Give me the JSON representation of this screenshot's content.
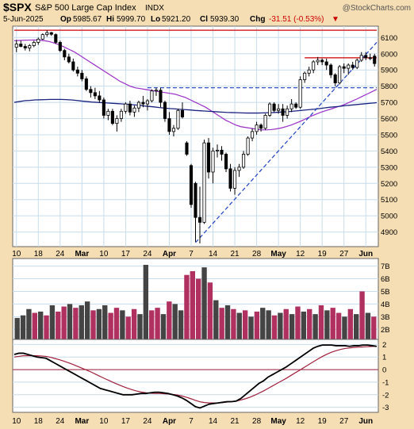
{
  "header": {
    "symbol": "$SPX",
    "name": "S&P 500 Large Cap Index",
    "exchange": "INDX",
    "copyright": "@StockCharts.com",
    "date": "5-Jun-2025",
    "open_label": "Op",
    "open": "5985.67",
    "high_label": "Hi",
    "high": "5999.70",
    "low_label": "Lo",
    "low": "5921.20",
    "close_label": "Cl",
    "close": "5939.30",
    "change_label": "Chg",
    "change": "-31.51 (-0.53%)",
    "change_arrow": "▼"
  },
  "colors": {
    "background": "#f5deb3",
    "panel": "#ffffff",
    "grid": "#c8dcec",
    "candle": "#000000",
    "up_volume": "#b03060",
    "down_volume": "#444444",
    "ma_short": "#9b30c8",
    "ma_long": "#1a237e",
    "trendline": "#1f3fbf",
    "resistance": "#cc0000",
    "indicator_line": "#000000",
    "indicator_signal": "#a0203c",
    "zero_line": "#a0203c"
  },
  "chart_data": [
    {
      "type": "candlestick",
      "y_ticks": [
        4900,
        5000,
        5100,
        5200,
        5300,
        5400,
        5500,
        5600,
        5700,
        5800,
        5900,
        6000,
        6100
      ],
      "ylim": [
        4810,
        6170
      ],
      "x_labels": [
        "10",
        "18",
        "24",
        "Mar",
        "10",
        "17",
        "24",
        "Apr",
        "7",
        "14",
        "21",
        "28",
        "May",
        "12",
        "19",
        "27",
        "Jun"
      ],
      "candles": [
        {
          "o": 6040,
          "h": 6085,
          "l": 6010,
          "c": 6060
        },
        {
          "o": 6060,
          "h": 6080,
          "l": 6040,
          "c": 6045
        },
        {
          "o": 6045,
          "h": 6060,
          "l": 6020,
          "c": 6035
        },
        {
          "o": 6035,
          "h": 6060,
          "l": 6015,
          "c": 6050
        },
        {
          "o": 6050,
          "h": 6080,
          "l": 6040,
          "c": 6070
        },
        {
          "o": 6070,
          "h": 6100,
          "l": 6055,
          "c": 6090
        },
        {
          "o": 6090,
          "h": 6125,
          "l": 6085,
          "c": 6118
        },
        {
          "o": 6118,
          "h": 6145,
          "l": 6105,
          "c": 6130
        },
        {
          "o": 6130,
          "h": 6135,
          "l": 6110,
          "c": 6120
        },
        {
          "o": 6118,
          "h": 6125,
          "l": 6060,
          "c": 6070
        },
        {
          "o": 6070,
          "h": 6080,
          "l": 6010,
          "c": 6020
        },
        {
          "o": 6020,
          "h": 6030,
          "l": 5960,
          "c": 5980
        },
        {
          "o": 5980,
          "h": 6000,
          "l": 5940,
          "c": 5950
        },
        {
          "o": 5950,
          "h": 5970,
          "l": 5890,
          "c": 5900
        },
        {
          "o": 5900,
          "h": 5920,
          "l": 5860,
          "c": 5880
        },
        {
          "o": 5880,
          "h": 5900,
          "l": 5830,
          "c": 5845
        },
        {
          "o": 5845,
          "h": 5860,
          "l": 5770,
          "c": 5780
        },
        {
          "o": 5780,
          "h": 5800,
          "l": 5730,
          "c": 5760
        },
        {
          "o": 5760,
          "h": 5790,
          "l": 5720,
          "c": 5740
        },
        {
          "o": 5740,
          "h": 5770,
          "l": 5700,
          "c": 5715
        },
        {
          "o": 5715,
          "h": 5730,
          "l": 5600,
          "c": 5620
        },
        {
          "o": 5620,
          "h": 5660,
          "l": 5590,
          "c": 5645
        },
        {
          "o": 5645,
          "h": 5660,
          "l": 5560,
          "c": 5570
        },
        {
          "o": 5570,
          "h": 5620,
          "l": 5520,
          "c": 5600
        },
        {
          "o": 5600,
          "h": 5660,
          "l": 5580,
          "c": 5645
        },
        {
          "o": 5645,
          "h": 5700,
          "l": 5630,
          "c": 5690
        },
        {
          "o": 5690,
          "h": 5710,
          "l": 5620,
          "c": 5640
        },
        {
          "o": 5640,
          "h": 5680,
          "l": 5610,
          "c": 5665
        },
        {
          "o": 5665,
          "h": 5710,
          "l": 5640,
          "c": 5700
        },
        {
          "o": 5700,
          "h": 5740,
          "l": 5670,
          "c": 5690
        },
        {
          "o": 5690,
          "h": 5720,
          "l": 5650,
          "c": 5710
        },
        {
          "o": 5710,
          "h": 5780,
          "l": 5700,
          "c": 5770
        },
        {
          "o": 5770,
          "h": 5790,
          "l": 5740,
          "c": 5775
        },
        {
          "o": 5775,
          "h": 5790,
          "l": 5670,
          "c": 5700
        },
        {
          "o": 5700,
          "h": 5710,
          "l": 5580,
          "c": 5600
        },
        {
          "o": 5600,
          "h": 5640,
          "l": 5500,
          "c": 5520
        },
        {
          "o": 5520,
          "h": 5560,
          "l": 5490,
          "c": 5540
        },
        {
          "o": 5540,
          "h": 5660,
          "l": 5530,
          "c": 5650
        },
        {
          "o": 5650,
          "h": 5700,
          "l": 5600,
          "c": 5610
        },
        {
          "o": 5450,
          "h": 5460,
          "l": 5370,
          "c": 5380
        },
        {
          "o": 5310,
          "h": 5320,
          "l": 5050,
          "c": 5070
        },
        {
          "o": 5200,
          "h": 5210,
          "l": 4840,
          "c": 4990
        },
        {
          "o": 4990,
          "h": 5180,
          "l": 4830,
          "c": 4960
        },
        {
          "o": 4960,
          "h": 5470,
          "l": 4950,
          "c": 5450
        },
        {
          "o": 5450,
          "h": 5480,
          "l": 5230,
          "c": 5270
        },
        {
          "o": 5270,
          "h": 5420,
          "l": 5200,
          "c": 5400
        },
        {
          "o": 5400,
          "h": 5440,
          "l": 5360,
          "c": 5405
        },
        {
          "o": 5405,
          "h": 5430,
          "l": 5340,
          "c": 5380
        },
        {
          "o": 5380,
          "h": 5390,
          "l": 5270,
          "c": 5290
        },
        {
          "o": 5290,
          "h": 5320,
          "l": 5150,
          "c": 5170
        },
        {
          "o": 5170,
          "h": 5300,
          "l": 5130,
          "c": 5280
        },
        {
          "o": 5280,
          "h": 5320,
          "l": 5240,
          "c": 5300
        },
        {
          "o": 5300,
          "h": 5400,
          "l": 5290,
          "c": 5380
        },
        {
          "o": 5380,
          "h": 5490,
          "l": 5370,
          "c": 5480
        },
        {
          "o": 5480,
          "h": 5540,
          "l": 5460,
          "c": 5520
        },
        {
          "o": 5520,
          "h": 5580,
          "l": 5500,
          "c": 5560
        },
        {
          "o": 5560,
          "h": 5570,
          "l": 5520,
          "c": 5540
        },
        {
          "o": 5540,
          "h": 5630,
          "l": 5530,
          "c": 5620
        },
        {
          "o": 5620,
          "h": 5700,
          "l": 5610,
          "c": 5690
        },
        {
          "o": 5690,
          "h": 5700,
          "l": 5640,
          "c": 5650
        },
        {
          "o": 5650,
          "h": 5690,
          "l": 5630,
          "c": 5660
        },
        {
          "o": 5660,
          "h": 5690,
          "l": 5580,
          "c": 5620
        },
        {
          "o": 5620,
          "h": 5680,
          "l": 5600,
          "c": 5660
        },
        {
          "o": 5660,
          "h": 5720,
          "l": 5640,
          "c": 5690
        },
        {
          "o": 5690,
          "h": 5700,
          "l": 5660,
          "c": 5670
        },
        {
          "o": 5670,
          "h": 5860,
          "l": 5660,
          "c": 5840
        },
        {
          "o": 5840,
          "h": 5890,
          "l": 5820,
          "c": 5880
        },
        {
          "o": 5880,
          "h": 5920,
          "l": 5860,
          "c": 5900
        },
        {
          "o": 5900,
          "h": 5960,
          "l": 5880,
          "c": 5950
        },
        {
          "o": 5950,
          "h": 5980,
          "l": 5930,
          "c": 5960
        },
        {
          "o": 5960,
          "h": 5970,
          "l": 5930,
          "c": 5950
        },
        {
          "o": 5950,
          "h": 5970,
          "l": 5900,
          "c": 5930
        },
        {
          "o": 5930,
          "h": 5940,
          "l": 5850,
          "c": 5870
        },
        {
          "o": 5870,
          "h": 5880,
          "l": 5800,
          "c": 5820
        },
        {
          "o": 5820,
          "h": 5930,
          "l": 5810,
          "c": 5920
        },
        {
          "o": 5920,
          "h": 5940,
          "l": 5880,
          "c": 5910
        },
        {
          "o": 5910,
          "h": 5940,
          "l": 5870,
          "c": 5930
        },
        {
          "o": 5930,
          "h": 5950,
          "l": 5900,
          "c": 5915
        },
        {
          "o": 5915,
          "h": 5970,
          "l": 5905,
          "c": 5960
        },
        {
          "o": 5960,
          "h": 6010,
          "l": 5950,
          "c": 5990
        },
        {
          "o": 5990,
          "h": 6010,
          "l": 5960,
          "c": 5975
        },
        {
          "o": 5975,
          "h": 6000,
          "l": 5960,
          "c": 5971
        },
        {
          "o": 5985.67,
          "h": 5999.7,
          "l": 5921.2,
          "c": 5939.3
        }
      ],
      "ma_short": [
        6080,
        6082,
        6083,
        6084,
        6085,
        6083,
        6080,
        6075,
        6065,
        6055,
        6040,
        6025,
        6010,
        5990,
        5970,
        5950,
        5930,
        5910,
        5890,
        5870,
        5850,
        5830,
        5815,
        5800,
        5790,
        5785,
        5780,
        5775,
        5770,
        5765,
        5760,
        5755,
        5750,
        5740,
        5730,
        5715,
        5700,
        5685,
        5670,
        5650,
        5630,
        5610,
        5590,
        5575,
        5560,
        5550,
        5545,
        5540,
        5535,
        5530,
        5530,
        5532,
        5536,
        5542,
        5550,
        5560,
        5572,
        5585,
        5600,
        5615,
        5628,
        5640,
        5650,
        5660,
        5670,
        5680,
        5692,
        5706,
        5720,
        5735,
        5750,
        5765,
        5780
      ],
      "ma_long": [
        5700,
        5705,
        5710,
        5712,
        5715,
        5716,
        5717,
        5718,
        5718,
        5718,
        5717,
        5715,
        5712,
        5708,
        5705,
        5702,
        5700,
        5698,
        5696,
        5694,
        5692,
        5690,
        5688,
        5685,
        5682,
        5678,
        5675,
        5672,
        5668,
        5665,
        5662,
        5660,
        5657,
        5655,
        5653,
        5650,
        5648,
        5646,
        5644,
        5642,
        5640,
        5638,
        5637,
        5636,
        5635,
        5634,
        5634,
        5634,
        5635,
        5636,
        5637,
        5639,
        5641,
        5643,
        5646,
        5649,
        5652,
        5655,
        5658,
        5662,
        5666,
        5670,
        5673,
        5676,
        5680,
        5683,
        5686,
        5689,
        5692,
        5695,
        5698
      ],
      "resistance_levels": [
        6145,
        5975
      ],
      "support_level": 5790,
      "trendline": {
        "from": 4835,
        "to": 6070
      }
    },
    {
      "type": "bar",
      "name": "volume",
      "y_ticks": [
        "2B",
        "3B",
        "4B",
        "5B",
        "6B",
        "7B"
      ],
      "y_values": [
        2,
        3,
        4,
        5,
        6,
        7
      ],
      "ylim": [
        1.2,
        7.6
      ],
      "bars": [
        {
          "v": 2.9,
          "u": 0
        },
        {
          "v": 3.1,
          "u": 0
        },
        {
          "v": 3.6,
          "u": 0
        },
        {
          "v": 3.3,
          "u": 1
        },
        {
          "v": 3.4,
          "u": 0
        },
        {
          "v": 3.1,
          "u": 1
        },
        {
          "v": 3.9,
          "u": 0
        },
        {
          "v": 3.4,
          "u": 1
        },
        {
          "v": 3.8,
          "u": 1
        },
        {
          "v": 4.0,
          "u": 0
        },
        {
          "v": 3.7,
          "u": 1
        },
        {
          "v": 3.9,
          "u": 0
        },
        {
          "v": 4.2,
          "u": 0
        },
        {
          "v": 3.5,
          "u": 1
        },
        {
          "v": 3.6,
          "u": 0
        },
        {
          "v": 3.9,
          "u": 0
        },
        {
          "v": 3.3,
          "u": 1
        },
        {
          "v": 3.7,
          "u": 1
        },
        {
          "v": 3.5,
          "u": 0
        },
        {
          "v": 3.0,
          "u": 1
        },
        {
          "v": 3.6,
          "u": 1
        },
        {
          "v": 3.2,
          "u": 0
        },
        {
          "v": 7.1,
          "u": 0
        },
        {
          "v": 3.5,
          "u": 1
        },
        {
          "v": 3.7,
          "u": 1
        },
        {
          "v": 3.2,
          "u": 0
        },
        {
          "v": 4.2,
          "u": 1
        },
        {
          "v": 4.0,
          "u": 0
        },
        {
          "v": 3.5,
          "u": 0
        },
        {
          "v": 6.3,
          "u": 1
        },
        {
          "v": 6.6,
          "u": 1
        },
        {
          "v": 6.0,
          "u": 1
        },
        {
          "v": 6.9,
          "u": 0
        },
        {
          "v": 5.7,
          "u": 1
        },
        {
          "v": 4.3,
          "u": 0
        },
        {
          "v": 3.7,
          "u": 1
        },
        {
          "v": 3.9,
          "u": 0
        },
        {
          "v": 3.6,
          "u": 1
        },
        {
          "v": 3.3,
          "u": 0
        },
        {
          "v": 3.5,
          "u": 1
        },
        {
          "v": 3.0,
          "u": 0
        },
        {
          "v": 3.4,
          "u": 1
        },
        {
          "v": 3.7,
          "u": 0
        },
        {
          "v": 3.5,
          "u": 0
        },
        {
          "v": 3.1,
          "u": 1
        },
        {
          "v": 3.3,
          "u": 0
        },
        {
          "v": 3.6,
          "u": 1
        },
        {
          "v": 3.2,
          "u": 0
        },
        {
          "v": 3.8,
          "u": 1
        },
        {
          "v": 3.4,
          "u": 0
        },
        {
          "v": 3.6,
          "u": 1
        },
        {
          "v": 3.2,
          "u": 0
        },
        {
          "v": 3.9,
          "u": 1
        },
        {
          "v": 3.5,
          "u": 0
        },
        {
          "v": 3.7,
          "u": 1
        },
        {
          "v": 3.3,
          "u": 1
        },
        {
          "v": 3.0,
          "u": 0
        },
        {
          "v": 3.6,
          "u": 1
        },
        {
          "v": 3.2,
          "u": 0
        },
        {
          "v": 5.0,
          "u": 1
        },
        {
          "v": 3.3,
          "u": 0
        },
        {
          "v": 3.0,
          "u": 1
        }
      ]
    },
    {
      "type": "line",
      "name": "indicator",
      "y_ticks": [
        -3,
        -2,
        -1,
        0,
        1,
        2
      ],
      "ylim": [
        -3.4,
        2.4
      ],
      "main": [
        1.2,
        1.3,
        1.3,
        1.2,
        1.1,
        1.0,
        0.95,
        0.9,
        0.7,
        0.5,
        0.3,
        0.1,
        -0.1,
        -0.3,
        -0.5,
        -0.7,
        -0.9,
        -1.1,
        -1.3,
        -1.5,
        -1.6,
        -1.7,
        -1.8,
        -1.9,
        -2.0,
        -2.0,
        -2.0,
        -1.95,
        -1.9,
        -1.9,
        -1.85,
        -1.8,
        -1.8,
        -1.85,
        -1.9,
        -2.0,
        -2.1,
        -2.25,
        -2.45,
        -2.7,
        -2.95,
        -3.05,
        -2.9,
        -2.75,
        -2.7,
        -2.65,
        -2.6,
        -2.55,
        -2.55,
        -2.5,
        -2.3,
        -2.0,
        -1.7,
        -1.4,
        -1.1,
        -0.9,
        -0.6,
        -0.4,
        -0.2,
        0.0,
        0.2,
        0.45,
        0.7,
        0.95,
        1.2,
        1.45,
        1.7,
        1.85,
        1.95,
        1.95,
        1.95,
        1.9,
        1.9,
        1.9,
        1.85,
        1.9,
        1.9,
        1.95,
        1.95,
        1.9,
        1.85
      ],
      "signal": [
        1.0,
        1.05,
        1.1,
        1.1,
        1.1,
        1.1,
        1.08,
        1.05,
        0.98,
        0.88,
        0.78,
        0.66,
        0.54,
        0.4,
        0.25,
        0.1,
        -0.05,
        -0.2,
        -0.38,
        -0.55,
        -0.72,
        -0.88,
        -1.05,
        -1.2,
        -1.35,
        -1.48,
        -1.6,
        -1.7,
        -1.78,
        -1.84,
        -1.88,
        -1.9,
        -1.9,
        -1.92,
        -1.94,
        -1.98,
        -2.02,
        -2.1,
        -2.2,
        -2.32,
        -2.45,
        -2.56,
        -2.62,
        -2.65,
        -2.65,
        -2.65,
        -2.62,
        -2.58,
        -2.55,
        -2.5,
        -2.42,
        -2.32,
        -2.2,
        -2.05,
        -1.88,
        -1.7,
        -1.5,
        -1.3,
        -1.1,
        -0.9,
        -0.7,
        -0.48,
        -0.26,
        -0.05,
        0.18,
        0.4,
        0.62,
        0.84,
        1.04,
        1.22,
        1.38,
        1.5,
        1.6,
        1.68,
        1.72,
        1.76,
        1.78,
        1.8,
        1.82,
        1.84,
        1.86
      ]
    }
  ]
}
